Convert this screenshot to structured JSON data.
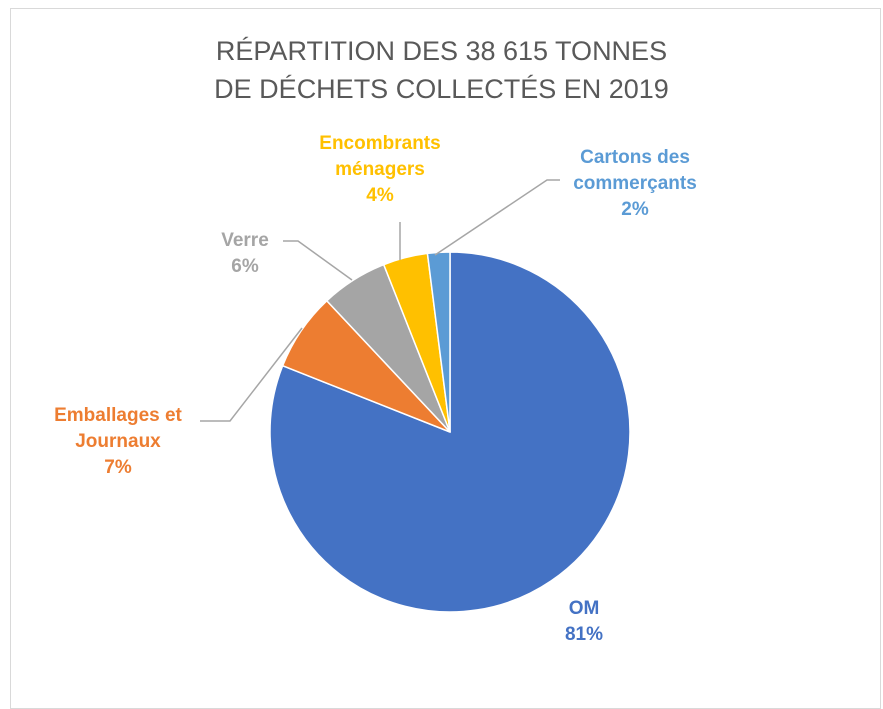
{
  "chart_data": {
    "type": "pie",
    "title": [
      "RÉPARTITION DES 38 615 TONNES",
      "DE DÉCHETS COLLECTÉS EN 2019"
    ],
    "categories": [
      "OM",
      "Emballages et Journaux",
      "Verre",
      "Encombrants ménagers",
      "Cartons des commerçants"
    ],
    "values": [
      81,
      7,
      6,
      4,
      2
    ],
    "value_labels": [
      "81%",
      "7%",
      "6%",
      "4%",
      "2%"
    ],
    "colors": [
      "#4472c4",
      "#ed7d31",
      "#a5a5a5",
      "#ffc000",
      "#5b9bd5"
    ]
  }
}
